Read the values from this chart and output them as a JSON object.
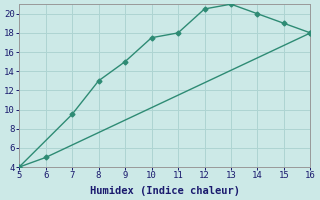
{
  "xlabel": "Humidex (Indice chaleur)",
  "line1_x": [
    5,
    7,
    8,
    9,
    10,
    11,
    12,
    13,
    14,
    15,
    16
  ],
  "line1_y": [
    4,
    9.5,
    13,
    15,
    17.5,
    18,
    20.5,
    21,
    20,
    19,
    18
  ],
  "line2_x": [
    5,
    6,
    16
  ],
  "line2_y": [
    4,
    5,
    18
  ],
  "color": "#2e8b74",
  "bg_color": "#cce9e7",
  "grid_color": "#aed4d2",
  "xlim": [
    5,
    16
  ],
  "ylim": [
    4,
    21
  ],
  "xticks": [
    5,
    6,
    7,
    8,
    9,
    10,
    11,
    12,
    13,
    14,
    15,
    16
  ],
  "yticks": [
    4,
    6,
    8,
    10,
    12,
    14,
    16,
    18,
    20
  ],
  "marker": "D",
  "marker_size": 2.5,
  "linewidth": 1.0,
  "tick_fontsize": 6.5,
  "label_fontsize": 7.5
}
